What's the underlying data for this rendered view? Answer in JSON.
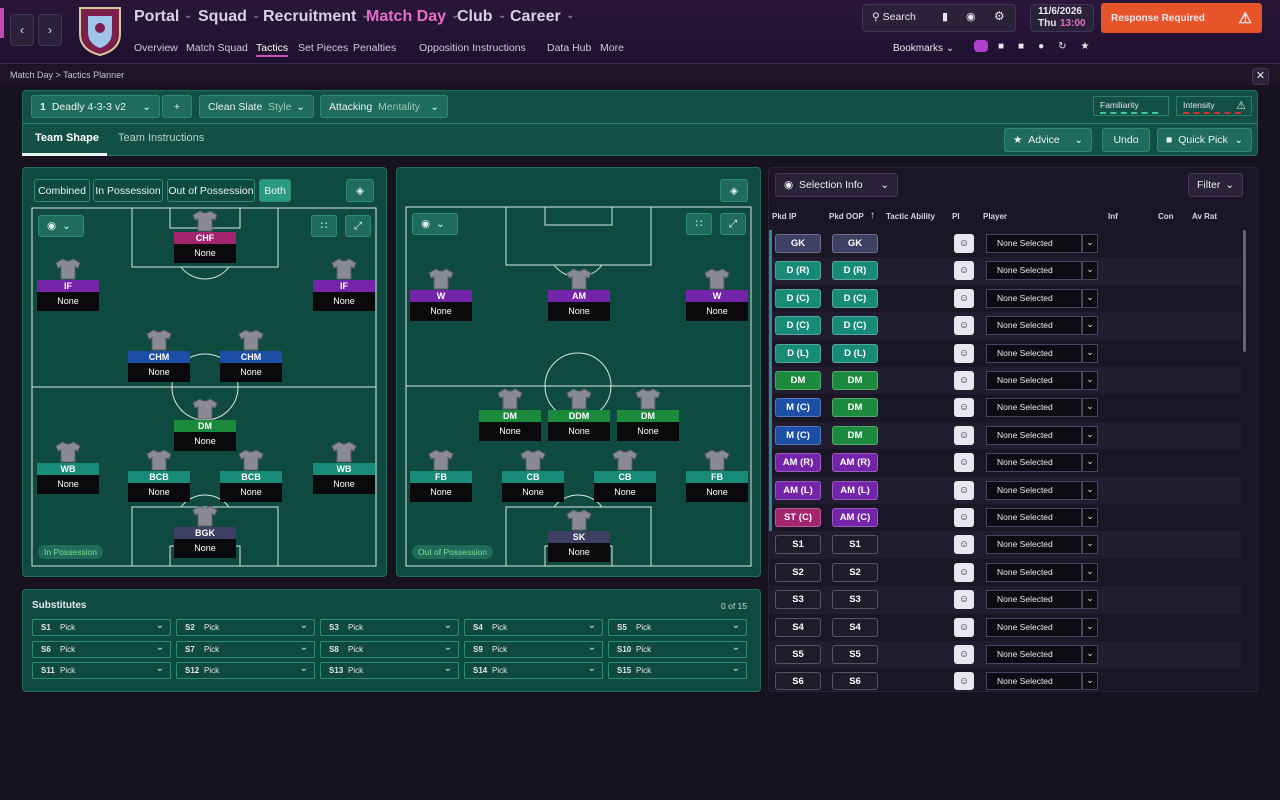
{
  "nav": {
    "items": [
      "Portal",
      "Squad",
      "Recruitment",
      "Match Day",
      "Club",
      "Career"
    ],
    "active": "Match Day",
    "subitems": [
      "Overview",
      "Match Squad",
      "Tactics",
      "Set Pieces",
      "Penalties",
      "Opposition Instructions",
      "Data Hub",
      "More"
    ],
    "subactive": "Tactics"
  },
  "header": {
    "search": "Search",
    "date": "11/6/2026",
    "day": "Thu",
    "time": "13:00",
    "alert": "Response Required",
    "bookmarks": "Bookmarks"
  },
  "breadcrumb": [
    "Match Day",
    "Tactics Planner"
  ],
  "tactic": {
    "slot": "1",
    "name": "Deadly 4-3-3 v2",
    "style": "Clean Slate",
    "style_label": "Style",
    "mentality": "Attacking",
    "mentality_label": "Mentality",
    "familiarity": "Familiarity",
    "intensity": "Intensity"
  },
  "tabs": [
    "Team Shape",
    "Team Instructions"
  ],
  "active_tab": "Team Shape",
  "actions": [
    "Advice",
    "Undo",
    "Quick Pick"
  ],
  "phases": [
    "Combined",
    "In Possession",
    "Out of Possession",
    "Both"
  ],
  "active_phase": "Both",
  "pitches": [
    {
      "label": "In Possession",
      "players": [
        {
          "role": "CHF",
          "player": "None",
          "color": "#a3246f"
        },
        {
          "role": "IF",
          "player": "None",
          "color": "#7424a8"
        },
        {
          "role": "IF",
          "player": "None",
          "color": "#7424a8"
        },
        {
          "role": "CHM",
          "player": "None",
          "color": "#1d4ea6"
        },
        {
          "role": "CHM",
          "player": "None",
          "color": "#1d4ea6"
        },
        {
          "role": "DM",
          "player": "None",
          "color": "#1c8a3c"
        },
        {
          "role": "WB",
          "player": "None",
          "color": "#178a78"
        },
        {
          "role": "WB",
          "player": "None",
          "color": "#178a78"
        },
        {
          "role": "BCB",
          "player": "None",
          "color": "#178a78"
        },
        {
          "role": "BCB",
          "player": "None",
          "color": "#178a78"
        },
        {
          "role": "BGK",
          "player": "None",
          "color": "#3d3f63"
        }
      ]
    },
    {
      "label": "Out of Possession",
      "players": [
        {
          "role": "W",
          "player": "None",
          "color": "#7424a8"
        },
        {
          "role": "AM",
          "player": "None",
          "color": "#7424a8"
        },
        {
          "role": "W",
          "player": "None",
          "color": "#7424a8"
        },
        {
          "role": "DM",
          "player": "None",
          "color": "#1c8a3c"
        },
        {
          "role": "DDM",
          "player": "None",
          "color": "#1c8a3c"
        },
        {
          "role": "DM",
          "player": "None",
          "color": "#1c8a3c"
        },
        {
          "role": "FB",
          "player": "None",
          "color": "#178a78"
        },
        {
          "role": "CB",
          "player": "None",
          "color": "#178a78"
        },
        {
          "role": "CB",
          "player": "None",
          "color": "#178a78"
        },
        {
          "role": "FB",
          "player": "None",
          "color": "#178a78"
        },
        {
          "role": "SK",
          "player": "None",
          "color": "#3d3f63"
        }
      ]
    }
  ],
  "selection": {
    "title": "Selection Info",
    "filter": "Filter",
    "columns": [
      "Pkd IP",
      "Pkd OOP",
      "Tactic Ability",
      "PI",
      "Player",
      "Inf",
      "Con",
      "Av Rat"
    ],
    "pill_colors": {
      "GK": "#3d3f63",
      "D": "#178a78",
      "DM": "#1c8a3c",
      "M": "#1d4ea6",
      "AM": "#7424a8",
      "ST": "#a3246f"
    },
    "rows": [
      {
        "ip": "GK",
        "oop": "GK",
        "player": "None Selected"
      },
      {
        "ip": "D (R)",
        "oop": "D (R)",
        "player": "None Selected"
      },
      {
        "ip": "D (C)",
        "oop": "D (C)",
        "player": "None Selected"
      },
      {
        "ip": "D (C)",
        "oop": "D (C)",
        "player": "None Selected"
      },
      {
        "ip": "D (L)",
        "oop": "D (L)",
        "player": "None Selected"
      },
      {
        "ip": "DM",
        "oop": "DM",
        "player": "None Selected"
      },
      {
        "ip": "M (C)",
        "oop": "DM",
        "player": "None Selected"
      },
      {
        "ip": "M (C)",
        "oop": "DM",
        "player": "None Selected"
      },
      {
        "ip": "AM (R)",
        "oop": "AM (R)",
        "player": "None Selected"
      },
      {
        "ip": "AM (L)",
        "oop": "AM (L)",
        "player": "None Selected"
      },
      {
        "ip": "ST (C)",
        "oop": "AM (C)",
        "player": "None Selected"
      },
      {
        "ip": "S1",
        "oop": "S1",
        "player": "None Selected"
      },
      {
        "ip": "S2",
        "oop": "S2",
        "player": "None Selected"
      },
      {
        "ip": "S3",
        "oop": "S3",
        "player": "None Selected"
      },
      {
        "ip": "S4",
        "oop": "S4",
        "player": "None Selected"
      },
      {
        "ip": "S5",
        "oop": "S5",
        "player": "None Selected"
      },
      {
        "ip": "S6",
        "oop": "S6",
        "player": "None Selected"
      }
    ]
  },
  "substitutes": {
    "title": "Substitutes",
    "count": "0 of 15",
    "slots": [
      {
        "slot": "S1",
        "pick": "Pick"
      },
      {
        "slot": "S2",
        "pick": "Pick"
      },
      {
        "slot": "S3",
        "pick": "Pick"
      },
      {
        "slot": "S4",
        "pick": "Pick"
      },
      {
        "slot": "S5",
        "pick": "Pick"
      },
      {
        "slot": "S6",
        "pick": "Pick"
      },
      {
        "slot": "S7",
        "pick": "Pick"
      },
      {
        "slot": "S8",
        "pick": "Pick"
      },
      {
        "slot": "S9",
        "pick": "Pick"
      },
      {
        "slot": "S10",
        "pick": "Pick"
      },
      {
        "slot": "S11",
        "pick": "Pick"
      },
      {
        "slot": "S12",
        "pick": "Pick"
      },
      {
        "slot": "S13",
        "pick": "Pick"
      },
      {
        "slot": "S14",
        "pick": "Pick"
      },
      {
        "slot": "S15",
        "pick": "Pick"
      }
    ]
  }
}
